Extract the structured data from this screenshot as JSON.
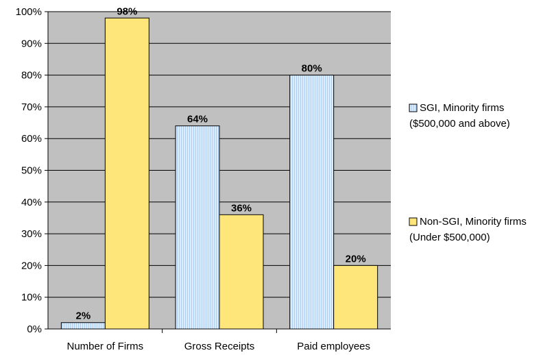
{
  "chart_data": {
    "type": "bar",
    "categories": [
      "Number of Firms",
      "Gross Receipts",
      "Paid employees"
    ],
    "series": [
      {
        "name": "SGI, Minority firms ($500,000 and above)",
        "name_lines": [
          "SGI, Minority firms",
          "($500,000 and above)"
        ],
        "values": [
          2,
          64,
          80
        ],
        "labels": [
          "2%",
          "64%",
          "80%"
        ],
        "color": "#cfe6ff"
      },
      {
        "name": "Non-SGI, Minority firms (Under $500,000)",
        "name_lines": [
          "Non-SGI, Minority firms",
          "(Under $500,000)"
        ],
        "values": [
          98,
          36,
          20
        ],
        "labels": [
          "98%",
          "36%",
          "20%"
        ],
        "color": "#ffe680"
      }
    ],
    "y_ticks": [
      "0%",
      "10%",
      "20%",
      "30%",
      "40%",
      "50%",
      "60%",
      "70%",
      "80%",
      "90%",
      "100%"
    ],
    "ylim": [
      0,
      100
    ],
    "grid": true,
    "legend_position": "right",
    "plot_background": "#c0c0c0",
    "title": "",
    "xlabel": "",
    "ylabel": ""
  }
}
